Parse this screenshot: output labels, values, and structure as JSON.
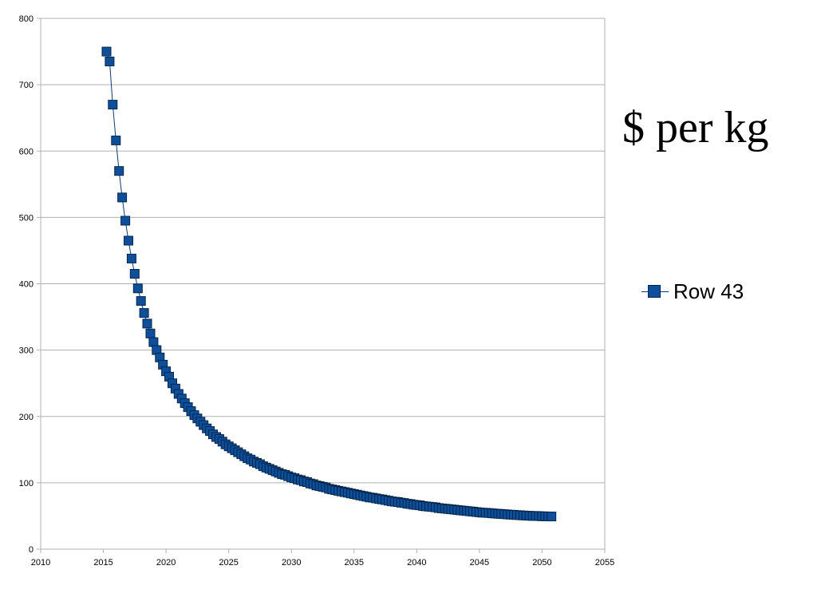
{
  "chart_data": {
    "type": "line",
    "title": "$ per kg",
    "xlabel": "",
    "ylabel": "",
    "xlim": [
      2010,
      2055
    ],
    "ylim": [
      0,
      800
    ],
    "x_ticks": [
      "2010",
      "2015",
      "2020",
      "2025",
      "2030",
      "2035",
      "2040",
      "2045",
      "2050",
      "2055"
    ],
    "y_ticks": [
      "0",
      "100",
      "200",
      "300",
      "400",
      "500",
      "600",
      "700",
      "800"
    ],
    "grid": "horizontal",
    "legend": "right",
    "colors": {
      "series": "#0d4f9a",
      "line": "#0d3a72",
      "grid": "#b0b0b0"
    },
    "series": [
      {
        "name": "Row 43",
        "marker": "square",
        "x": [
          2015.25,
          2015.5,
          2015.75,
          2016,
          2016.25,
          2016.5,
          2016.75,
          2017,
          2017.25,
          2017.5,
          2017.75,
          2018,
          2018.25,
          2018.5,
          2018.75,
          2019,
          2019.25,
          2019.5,
          2019.75,
          2020,
          2020.25,
          2020.5,
          2020.75,
          2021,
          2021.25,
          2021.5,
          2021.75,
          2022,
          2022.25,
          2022.5,
          2022.75,
          2023,
          2023.25,
          2023.5,
          2023.75,
          2024,
          2024.25,
          2024.5,
          2024.75,
          2025,
          2025.25,
          2025.5,
          2025.75,
          2026,
          2026.25,
          2026.5,
          2026.75,
          2027,
          2027.25,
          2027.5,
          2027.75,
          2028,
          2028.25,
          2028.5,
          2028.75,
          2029,
          2029.25,
          2029.5,
          2029.75,
          2030,
          2030.25,
          2030.5,
          2030.75,
          2031,
          2031.25,
          2031.5,
          2031.75,
          2032,
          2032.25,
          2032.5,
          2032.75,
          2033,
          2033.25,
          2033.5,
          2033.75,
          2034,
          2034.25,
          2034.5,
          2034.75,
          2035,
          2035.25,
          2035.5,
          2035.75,
          2036,
          2036.25,
          2036.5,
          2036.75,
          2037,
          2037.25,
          2037.5,
          2037.75,
          2038,
          2038.25,
          2038.5,
          2038.75,
          2039,
          2039.25,
          2039.5,
          2039.75,
          2040,
          2040.25,
          2040.5,
          2040.75,
          2041,
          2041.25,
          2041.5,
          2041.75,
          2042,
          2042.25,
          2042.5,
          2042.75,
          2043,
          2043.25,
          2043.5,
          2043.75,
          2044,
          2044.25,
          2044.5,
          2044.75,
          2045,
          2045.25,
          2045.5,
          2045.75,
          2046,
          2046.25,
          2046.5,
          2046.75,
          2047,
          2047.25,
          2047.5,
          2047.75,
          2048,
          2048.25,
          2048.5,
          2048.75,
          2049,
          2049.25,
          2049.5,
          2049.75,
          2050,
          2050.25,
          2050.5,
          2050.75
        ],
        "y": [
          750,
          735,
          670,
          616,
          570,
          530,
          495,
          465,
          438,
          415,
          393,
          374,
          356,
          340,
          325,
          312,
          300,
          289,
          278,
          268,
          260,
          250,
          242,
          234,
          227,
          220,
          214,
          208,
          202,
          197,
          192,
          187,
          182,
          178,
          173,
          169,
          166,
          162,
          158,
          155,
          152,
          149,
          146,
          143,
          140,
          137,
          135,
          132,
          130,
          128,
          125,
          123,
          121,
          119,
          117,
          115,
          113,
          112,
          110,
          108,
          107,
          105,
          104,
          102,
          101,
          99,
          98,
          96,
          95,
          94,
          93,
          91,
          90,
          89,
          88,
          87,
          86,
          85,
          84,
          83,
          82,
          81,
          80,
          79,
          78,
          77.5,
          76.5,
          75.5,
          75,
          74,
          73,
          72,
          71.5,
          71,
          70,
          69.5,
          68.5,
          68,
          67,
          66.5,
          66,
          65,
          64.5,
          64,
          63.5,
          63,
          62,
          61.5,
          61,
          60.5,
          60,
          59.5,
          59,
          58.5,
          58,
          57.5,
          57,
          56.5,
          56,
          55.5,
          55,
          54.8,
          54.5,
          54,
          53.7,
          53.3,
          53,
          52.7,
          52.3,
          52,
          51.7,
          51.4,
          51.1,
          50.8,
          50.5,
          50.3,
          50.1,
          50,
          49.8,
          49.6,
          49.5,
          49.3,
          49.2
        ]
      }
    ]
  }
}
